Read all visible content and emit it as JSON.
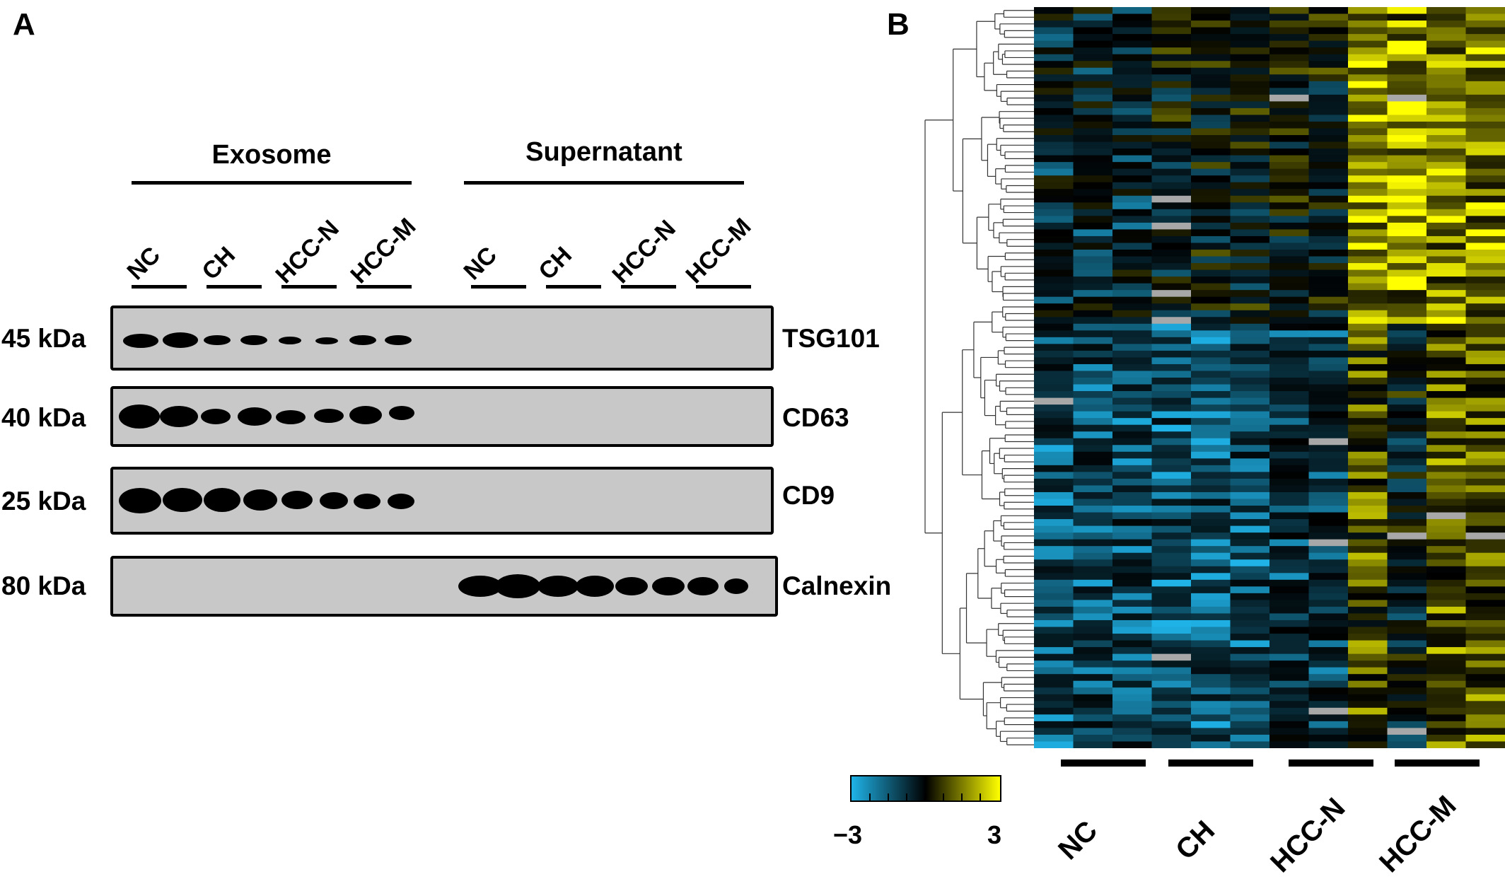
{
  "panels": {
    "a_label": "A",
    "b_label": "B"
  },
  "western_blot": {
    "group_headers": [
      "Exosome",
      "Supernatant"
    ],
    "lane_labels": [
      "NC",
      "CH",
      "HCC-N",
      "HCC-M",
      "NC",
      "CH",
      "HCC-N",
      "HCC-M"
    ],
    "rows": [
      {
        "size": "45 kDa",
        "protein": "TSG101",
        "present_in": "Exosome"
      },
      {
        "size": "40 kDa",
        "protein": "CD63",
        "present_in": "Exosome"
      },
      {
        "size": "25 kDa",
        "protein": "CD9",
        "present_in": "Exosome"
      },
      {
        "size": "80 kDa",
        "protein": "Calnexin",
        "present_in": "Supernatant"
      }
    ]
  },
  "heatmap": {
    "group_labels": [
      "NC",
      "CH",
      "HCC-N",
      "HCC-M"
    ],
    "colorbar": {
      "min_label": "−3",
      "max_label": "3",
      "low_color": "#1fb3e8",
      "mid_color": "#000000",
      "high_color": "#ffff00"
    },
    "colors": {
      "missing": "#a8a8a8"
    }
  }
}
